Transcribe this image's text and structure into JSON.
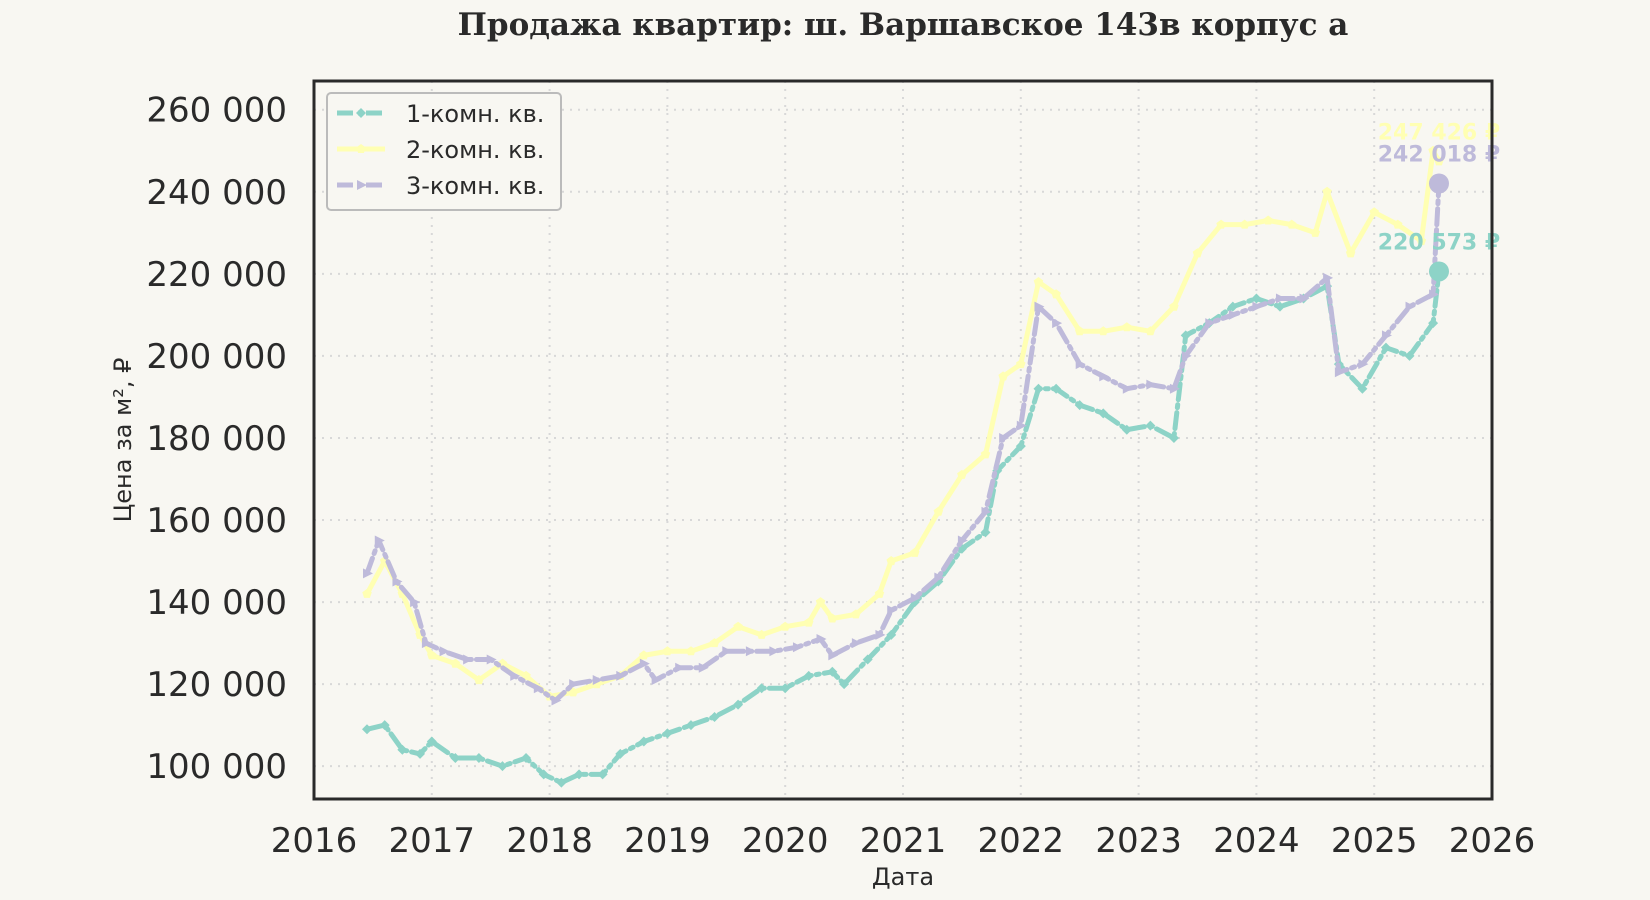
{
  "chart_data": {
    "type": "line",
    "title": "Продажа квартир: ш. Варшавское 143в корпус а",
    "xlabel": "Дата",
    "ylabel": "Цена за м², ₽",
    "xlim": [
      2016,
      2026
    ],
    "ylim": [
      92000,
      267000
    ],
    "x_ticks": [
      2016,
      2017,
      2018,
      2019,
      2020,
      2021,
      2022,
      2023,
      2024,
      2025,
      2026
    ],
    "x_tick_labels": [
      "2016",
      "2017",
      "2018",
      "2019",
      "2020",
      "2021",
      "2022",
      "2023",
      "2024",
      "2025",
      "2026"
    ],
    "y_ticks": [
      100000,
      120000,
      140000,
      160000,
      180000,
      200000,
      220000,
      240000,
      260000
    ],
    "y_tick_labels": [
      "100 000",
      "120 000",
      "140 000",
      "160 000",
      "180 000",
      "200 000",
      "220 000",
      "240 000",
      "260 000"
    ],
    "grid": true,
    "legend_position": "top-left",
    "series": [
      {
        "name": "1-комн. кв.",
        "color": "#8dd3c7",
        "marker": "diamond",
        "line_style": "dash-dot",
        "x": [
          2016.45,
          2016.6,
          2016.75,
          2016.9,
          2017.0,
          2017.2,
          2017.4,
          2017.6,
          2017.8,
          2017.95,
          2018.1,
          2018.25,
          2018.45,
          2018.6,
          2018.8,
          2019.0,
          2019.2,
          2019.4,
          2019.6,
          2019.8,
          2020.0,
          2020.2,
          2020.4,
          2020.5,
          2020.7,
          2020.9,
          2021.1,
          2021.3,
          2021.5,
          2021.7,
          2021.8,
          2022.0,
          2022.15,
          2022.3,
          2022.5,
          2022.7,
          2022.9,
          2023.1,
          2023.3,
          2023.4,
          2023.6,
          2023.8,
          2024.0,
          2024.2,
          2024.4,
          2024.6,
          2024.7,
          2024.9,
          2025.1,
          2025.3,
          2025.5,
          2025.55
        ],
        "y": [
          109000,
          110000,
          104000,
          103000,
          106000,
          102000,
          102000,
          100000,
          102000,
          98000,
          96000,
          98000,
          98000,
          103000,
          106000,
          108000,
          110000,
          112000,
          115000,
          119000,
          119000,
          122000,
          123000,
          120000,
          126000,
          132000,
          140000,
          145000,
          153000,
          157000,
          172000,
          178000,
          192000,
          192000,
          188000,
          186000,
          182000,
          183000,
          180000,
          205000,
          208000,
          212000,
          214000,
          212000,
          214000,
          217000,
          198000,
          192000,
          202000,
          200000,
          208000,
          220573
        ]
      },
      {
        "name": "2-комн. кв.",
        "color": "#ffffb3",
        "marker": "pentagon",
        "line_style": "solid",
        "x": [
          2016.45,
          2016.6,
          2016.75,
          2016.9,
          2017.0,
          2017.2,
          2017.4,
          2017.6,
          2017.8,
          2018.0,
          2018.2,
          2018.4,
          2018.6,
          2018.8,
          2019.0,
          2019.2,
          2019.4,
          2019.6,
          2019.8,
          2020.0,
          2020.2,
          2020.3,
          2020.4,
          2020.6,
          2020.8,
          2020.9,
          2021.1,
          2021.3,
          2021.5,
          2021.7,
          2021.85,
          2022.0,
          2022.15,
          2022.3,
          2022.5,
          2022.7,
          2022.9,
          2023.1,
          2023.3,
          2023.5,
          2023.7,
          2023.9,
          2024.1,
          2024.3,
          2024.5,
          2024.6,
          2024.8,
          2025.0,
          2025.2,
          2025.4,
          2025.5,
          2025.55
        ],
        "y": [
          142000,
          150000,
          142000,
          132000,
          127000,
          125000,
          121000,
          125000,
          122000,
          117000,
          118000,
          120000,
          122000,
          127000,
          128000,
          128000,
          130000,
          134000,
          132000,
          134000,
          135000,
          140000,
          136000,
          137000,
          142000,
          150000,
          152000,
          162000,
          171000,
          176000,
          195000,
          198000,
          218000,
          215000,
          206000,
          206000,
          207000,
          206000,
          212000,
          225000,
          232000,
          232000,
          233000,
          232000,
          230000,
          240000,
          225000,
          235000,
          232000,
          228000,
          250000,
          247426
        ]
      },
      {
        "name": "3-комн. кв.",
        "color": "#bebada",
        "marker": "triangle-right",
        "line_style": "dash-dot",
        "x": [
          2016.45,
          2016.55,
          2016.7,
          2016.85,
          2016.95,
          2017.1,
          2017.3,
          2017.5,
          2017.7,
          2017.9,
          2018.05,
          2018.2,
          2018.4,
          2018.6,
          2018.8,
          2018.9,
          2019.1,
          2019.3,
          2019.5,
          2019.7,
          2019.9,
          2020.1,
          2020.3,
          2020.4,
          2020.6,
          2020.8,
          2020.9,
          2021.1,
          2021.3,
          2021.5,
          2021.7,
          2021.85,
          2022.0,
          2022.15,
          2022.3,
          2022.5,
          2022.7,
          2022.9,
          2023.1,
          2023.3,
          2023.4,
          2023.6,
          2023.8,
          2024.0,
          2024.2,
          2024.4,
          2024.6,
          2024.7,
          2024.9,
          2025.1,
          2025.3,
          2025.5,
          2025.55
        ],
        "y": [
          147000,
          155000,
          145000,
          140000,
          130000,
          128000,
          126000,
          126000,
          122000,
          119000,
          116000,
          120000,
          121000,
          122000,
          125000,
          121000,
          124000,
          124000,
          128000,
          128000,
          128000,
          129000,
          131000,
          127000,
          130000,
          132000,
          138000,
          141000,
          146000,
          155000,
          162000,
          180000,
          183000,
          212000,
          208000,
          198000,
          195000,
          192000,
          193000,
          192000,
          200000,
          208000,
          210000,
          212000,
          214000,
          214000,
          219000,
          196000,
          198000,
          205000,
          212000,
          215000,
          242018
        ]
      }
    ],
    "end_labels": [
      {
        "series": "2-комн. кв.",
        "text": "247 426 ₽",
        "value": 247426,
        "color": "#ffffb3"
      },
      {
        "series": "3-комн. кв.",
        "text": "242 018 ₽",
        "value": 242018,
        "color": "#bebada"
      },
      {
        "series": "1-комн. кв.",
        "text": "220 573 ₽",
        "value": 220573,
        "color": "#8dd3c7"
      }
    ]
  }
}
